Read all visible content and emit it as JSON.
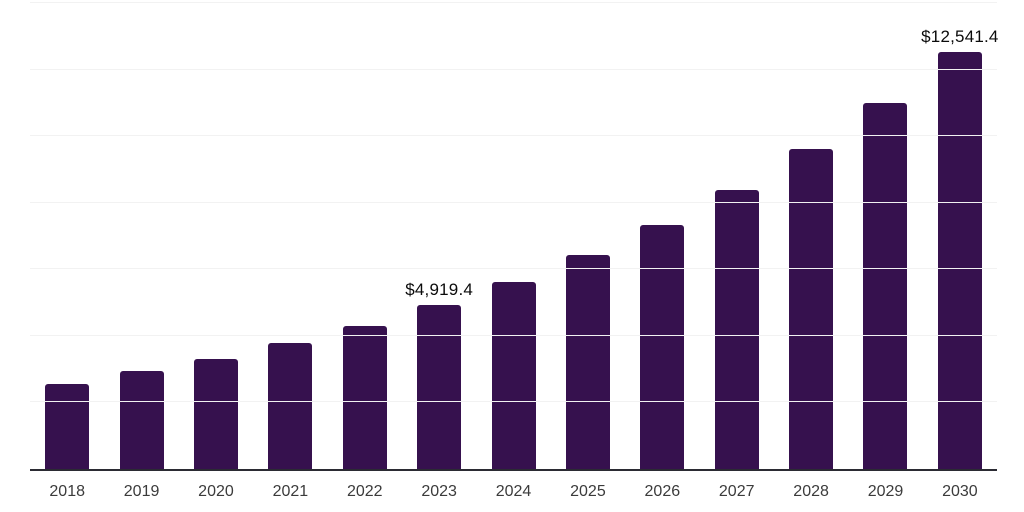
{
  "chart_data": {
    "type": "bar",
    "title": "",
    "xlabel": "",
    "ylabel": "",
    "categories": [
      "2018",
      "2019",
      "2020",
      "2021",
      "2022",
      "2023",
      "2024",
      "2025",
      "2026",
      "2027",
      "2028",
      "2029",
      "2030"
    ],
    "values": [
      2570,
      2950,
      3310,
      3790,
      4310,
      4919.4,
      5620,
      6430,
      7330,
      8380,
      9610,
      10990,
      12541.4
    ],
    "data_labels": {
      "2023": "$4,919.4",
      "2030": "$12,541.4"
    },
    "ylim": [
      0,
      14000
    ],
    "gridline_step": 2000,
    "grid": "horizontal",
    "legend": "none",
    "bar_color": "#36114E"
  },
  "colors": {
    "bar": "#36114E",
    "gridline": "#f2f2f2",
    "axis_line": "#2b2b33",
    "tick_label": "#3b3b3b",
    "data_label": "#0b0b0b",
    "background": "#ffffff"
  }
}
